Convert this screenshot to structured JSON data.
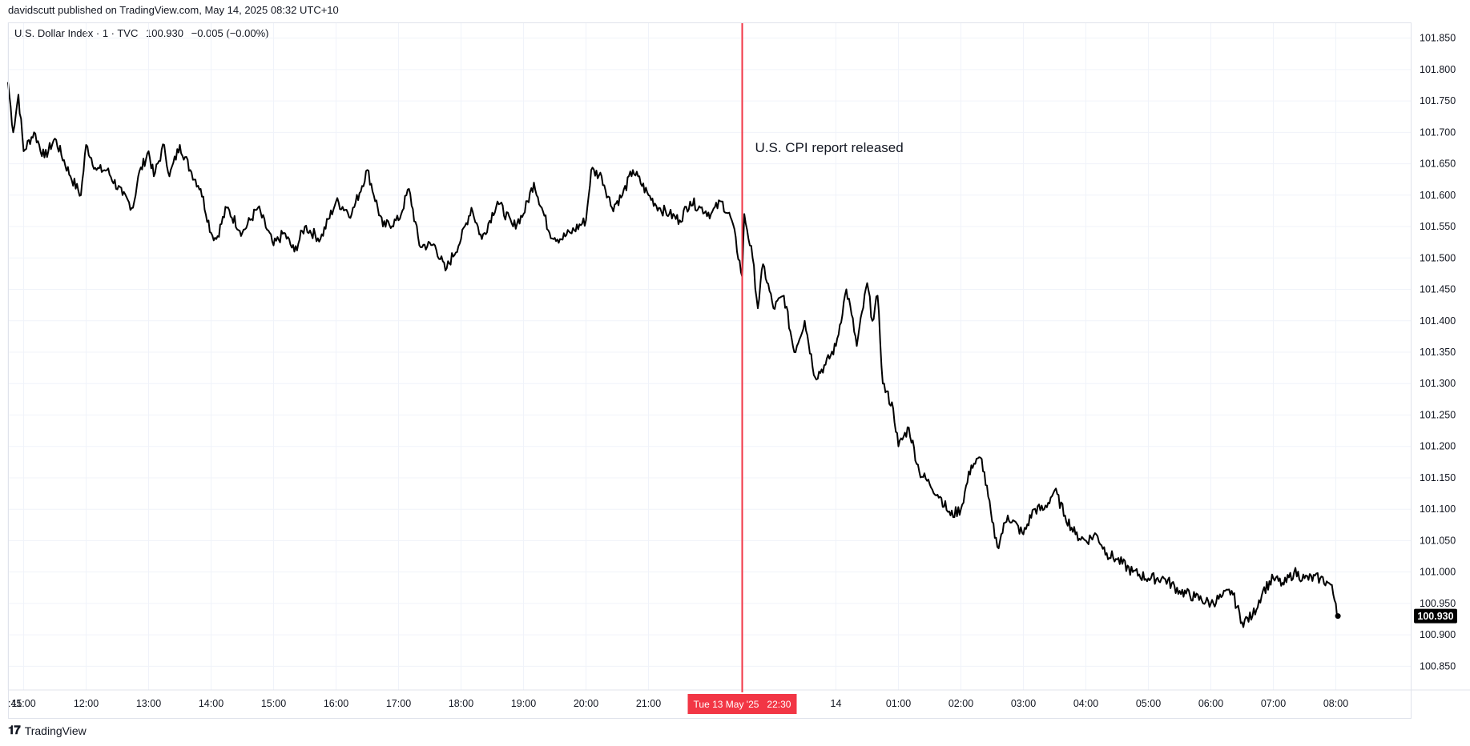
{
  "header": {
    "publisher_line": "davidscutt published on TradingView.com, May 14, 2025 08:32 UTC+10"
  },
  "legend": {
    "symbol": "U.S. Dollar Index · 1 · TVC",
    "last": "100.930",
    "change": "−0.005 (−0.00%)"
  },
  "footer": {
    "brand": "TradingView"
  },
  "colors": {
    "price_line": "#000000",
    "event_line": "#f23645",
    "grid": "#f0f3fa",
    "last_price_badge": "#000000"
  },
  "chart_data": {
    "type": "line",
    "series": [
      {
        "values": [
          {
            "x": "10:45",
            "y": 101.78
          },
          {
            "x": "10:50",
            "y": 101.7
          },
          {
            "x": "10:55",
            "y": 101.76
          },
          {
            "x": "11:00",
            "y": 101.67
          },
          {
            "x": "11:10",
            "y": 101.7
          },
          {
            "x": "11:20",
            "y": 101.66
          },
          {
            "x": "11:30",
            "y": 101.69
          },
          {
            "x": "11:45",
            "y": 101.63
          },
          {
            "x": "11:55",
            "y": 101.6
          },
          {
            "x": "12:00",
            "y": 101.68
          },
          {
            "x": "12:10",
            "y": 101.64
          },
          {
            "x": "12:20",
            "y": 101.64
          },
          {
            "x": "12:35",
            "y": 101.6
          },
          {
            "x": "12:45",
            "y": 101.58
          },
          {
            "x": "12:50",
            "y": 101.63
          },
          {
            "x": "13:00",
            "y": 101.67
          },
          {
            "x": "13:05",
            "y": 101.63
          },
          {
            "x": "13:15",
            "y": 101.68
          },
          {
            "x": "13:20",
            "y": 101.63
          },
          {
            "x": "13:30",
            "y": 101.68
          },
          {
            "x": "13:40",
            "y": 101.64
          },
          {
            "x": "13:50",
            "y": 101.61
          },
          {
            "x": "14:00",
            "y": 101.54
          },
          {
            "x": "14:05",
            "y": 101.53
          },
          {
            "x": "14:15",
            "y": 101.58
          },
          {
            "x": "14:30",
            "y": 101.54
          },
          {
            "x": "14:45",
            "y": 101.58
          },
          {
            "x": "15:00",
            "y": 101.52
          },
          {
            "x": "15:10",
            "y": 101.54
          },
          {
            "x": "15:20",
            "y": 101.51
          },
          {
            "x": "15:30",
            "y": 101.55
          },
          {
            "x": "15:45",
            "y": 101.53
          },
          {
            "x": "16:00",
            "y": 101.59
          },
          {
            "x": "16:15",
            "y": 101.57
          },
          {
            "x": "16:30",
            "y": 101.64
          },
          {
            "x": "16:45",
            "y": 101.55
          },
          {
            "x": "17:00",
            "y": 101.56
          },
          {
            "x": "17:10",
            "y": 101.61
          },
          {
            "x": "17:20",
            "y": 101.52
          },
          {
            "x": "17:35",
            "y": 101.52
          },
          {
            "x": "17:45",
            "y": 101.48
          },
          {
            "x": "18:00",
            "y": 101.53
          },
          {
            "x": "18:10",
            "y": 101.58
          },
          {
            "x": "18:20",
            "y": 101.53
          },
          {
            "x": "18:35",
            "y": 101.59
          },
          {
            "x": "18:50",
            "y": 101.55
          },
          {
            "x": "19:00",
            "y": 101.57
          },
          {
            "x": "19:10",
            "y": 101.62
          },
          {
            "x": "19:25",
            "y": 101.54
          },
          {
            "x": "19:35",
            "y": 101.53
          },
          {
            "x": "19:45",
            "y": 101.54
          },
          {
            "x": "20:00",
            "y": 101.56
          },
          {
            "x": "20:05",
            "y": 101.64
          },
          {
            "x": "20:15",
            "y": 101.63
          },
          {
            "x": "20:25",
            "y": 101.58
          },
          {
            "x": "20:35",
            "y": 101.6
          },
          {
            "x": "20:45",
            "y": 101.64
          },
          {
            "x": "21:00",
            "y": 101.6
          },
          {
            "x": "21:10",
            "y": 101.58
          },
          {
            "x": "21:20",
            "y": 101.57
          },
          {
            "x": "21:30",
            "y": 101.56
          },
          {
            "x": "21:40",
            "y": 101.59
          },
          {
            "x": "21:50",
            "y": 101.58
          },
          {
            "x": "22:00",
            "y": 101.57
          },
          {
            "x": "22:10",
            "y": 101.59
          },
          {
            "x": "22:20",
            "y": 101.56
          },
          {
            "x": "22:30",
            "y": 101.47
          },
          {
            "x": "22:32",
            "y": 101.57
          },
          {
            "x": "22:40",
            "y": 101.5
          },
          {
            "x": "22:45",
            "y": 101.42
          },
          {
            "x": "22:50",
            "y": 101.49
          },
          {
            "x": "23:00",
            "y": 101.42
          },
          {
            "x": "23:10",
            "y": 101.44
          },
          {
            "x": "23:20",
            "y": 101.35
          },
          {
            "x": "23:30",
            "y": 101.4
          },
          {
            "x": "23:40",
            "y": 101.31
          },
          {
            "x": "23:50",
            "y": 101.33
          },
          {
            "x": "00:00",
            "y": 101.36
          },
          {
            "x": "00:10",
            "y": 101.45
          },
          {
            "x": "00:15",
            "y": 101.41
          },
          {
            "x": "00:20",
            "y": 101.36
          },
          {
            "x": "00:30",
            "y": 101.46
          },
          {
            "x": "00:35",
            "y": 101.4
          },
          {
            "x": "00:40",
            "y": 101.44
          },
          {
            "x": "00:45",
            "y": 101.3
          },
          {
            "x": "00:55",
            "y": 101.26
          },
          {
            "x": "01:00",
            "y": 101.2
          },
          {
            "x": "01:10",
            "y": 101.23
          },
          {
            "x": "01:20",
            "y": 101.16
          },
          {
            "x": "01:30",
            "y": 101.14
          },
          {
            "x": "01:40",
            "y": 101.12
          },
          {
            "x": "01:50",
            "y": 101.09
          },
          {
            "x": "02:00",
            "y": 101.1
          },
          {
            "x": "02:10",
            "y": 101.17
          },
          {
            "x": "02:20",
            "y": 101.18
          },
          {
            "x": "02:30",
            "y": 101.08
          },
          {
            "x": "02:35",
            "y": 101.04
          },
          {
            "x": "02:45",
            "y": 101.09
          },
          {
            "x": "03:00",
            "y": 101.06
          },
          {
            "x": "03:10",
            "y": 101.1
          },
          {
            "x": "03:20",
            "y": 101.1
          },
          {
            "x": "03:30",
            "y": 101.13
          },
          {
            "x": "03:40",
            "y": 101.09
          },
          {
            "x": "03:50",
            "y": 101.06
          },
          {
            "x": "04:00",
            "y": 101.05
          },
          {
            "x": "04:10",
            "y": 101.06
          },
          {
            "x": "04:20",
            "y": 101.03
          },
          {
            "x": "04:30",
            "y": 101.02
          },
          {
            "x": "04:45",
            "y": 101.0
          },
          {
            "x": "05:00",
            "y": 100.99
          },
          {
            "x": "05:15",
            "y": 100.99
          },
          {
            "x": "05:30",
            "y": 100.97
          },
          {
            "x": "05:45",
            "y": 100.96
          },
          {
            "x": "06:00",
            "y": 100.95
          },
          {
            "x": "06:10",
            "y": 100.96
          },
          {
            "x": "06:20",
            "y": 100.97
          },
          {
            "x": "06:30",
            "y": 100.92
          },
          {
            "x": "06:40",
            "y": 100.93
          },
          {
            "x": "06:50",
            "y": 100.97
          },
          {
            "x": "07:00",
            "y": 100.99
          },
          {
            "x": "07:10",
            "y": 100.98
          },
          {
            "x": "07:20",
            "y": 101.0
          },
          {
            "x": "07:30",
            "y": 100.99
          },
          {
            "x": "07:45",
            "y": 100.99
          },
          {
            "x": "07:55",
            "y": 100.98
          },
          {
            "x": "08:00",
            "y": 100.95
          },
          {
            "x": "08:02",
            "y": 100.93
          }
        ]
      }
    ],
    "y_ticks": [
      "101.850",
      "101.800",
      "101.750",
      "101.700",
      "101.650",
      "101.600",
      "101.550",
      "101.500",
      "101.450",
      "101.400",
      "101.350",
      "101.300",
      "101.250",
      "101.200",
      "101.150",
      "101.100",
      "101.050",
      "101.000",
      "100.950",
      "100.900",
      "100.850"
    ],
    "x_ticks": [
      ":45",
      "11:00",
      "12:00",
      "13:00",
      "14:00",
      "15:00",
      "16:00",
      "17:00",
      "18:00",
      "19:00",
      "20:00",
      "21:00",
      "14",
      "01:00",
      "02:00",
      "03:00",
      "04:00",
      "05:00",
      "06:00",
      "07:00",
      "08:00"
    ],
    "ylim": [
      100.825,
      101.875
    ],
    "event": {
      "x": "22:30",
      "x_label": "Tue 13 May '25   22:30",
      "annotation": "U.S. CPI report released"
    },
    "last_price_label": "100.930",
    "grid": true
  }
}
